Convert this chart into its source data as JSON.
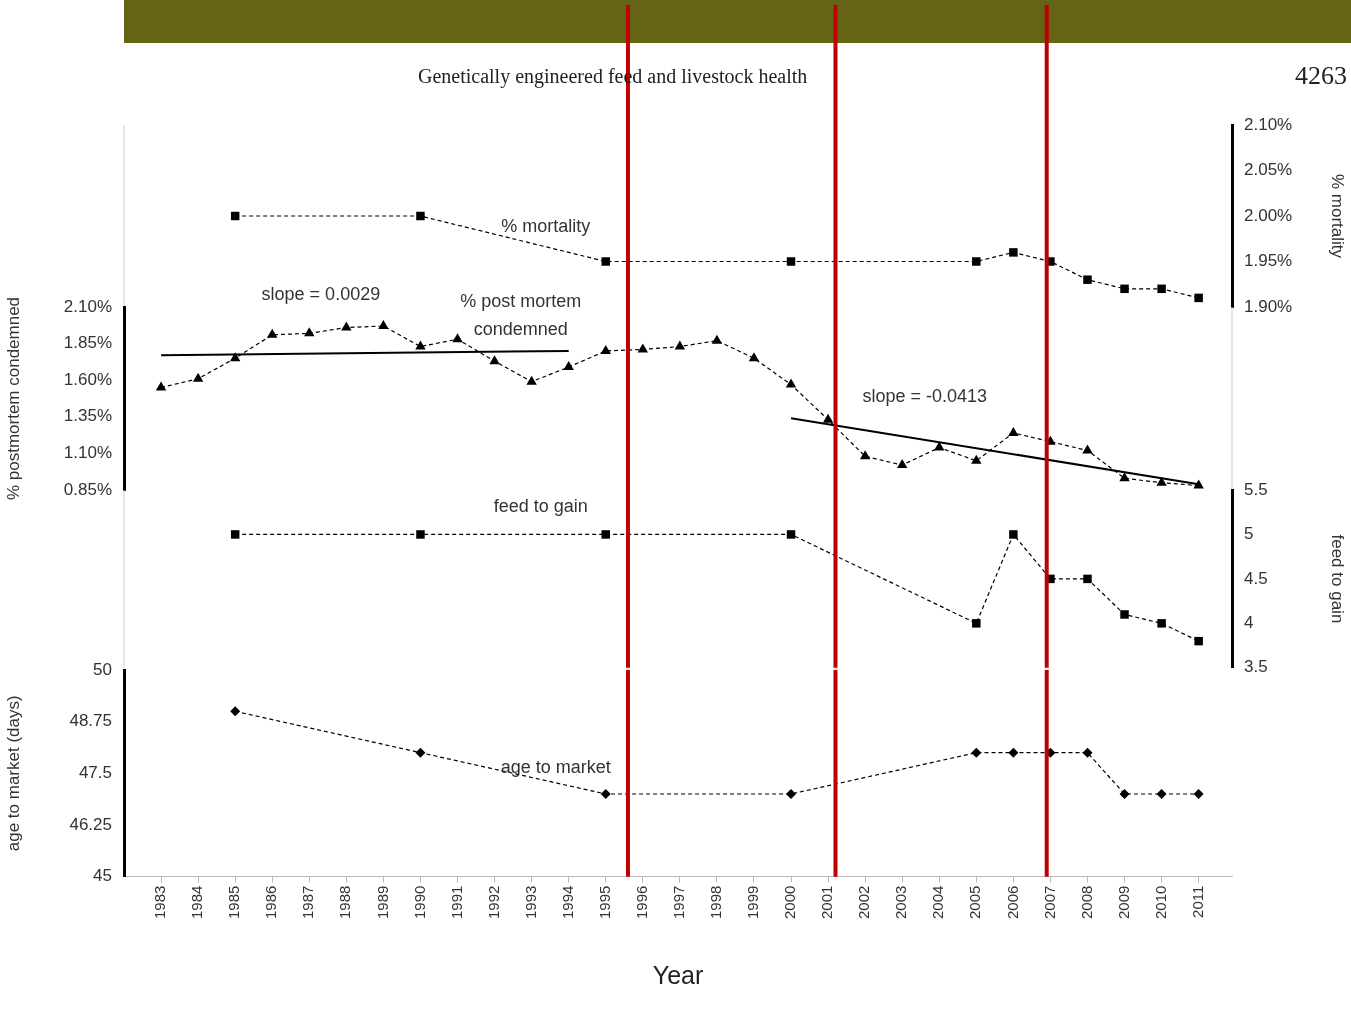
{
  "chart_data": [
    {
      "type": "line",
      "title": "Genetically engineered feed and livestock health",
      "ylabel": "% mortality",
      "annotations": [
        "4263"
      ],
      "x": [
        1985,
        1990,
        1995,
        2000,
        2005,
        2006,
        2007,
        2008,
        2009,
        2010,
        2011
      ],
      "series": [
        {
          "name": "% mortality",
          "color": "#000000",
          "marker": "square",
          "line_style": "dashed",
          "values": [
            2.0,
            2.0,
            1.95,
            1.95,
            1.95,
            1.96,
            1.95,
            1.93,
            1.92,
            1.92,
            1.91
          ]
        }
      ],
      "xlim": [
        1982.0,
        2011.9
      ],
      "tick_labels": "y",
      "ylim": [
        1.9,
        2.1
      ],
      "yticks": [
        {
          "value": 1.9,
          "label": "1.90%"
        },
        {
          "value": 1.95,
          "label": "1.95%"
        },
        {
          "value": 2.0,
          "label": "2.00%"
        },
        {
          "value": 2.05,
          "label": "2.05%"
        },
        {
          "value": 2.1,
          "label": "2.10%"
        }
      ],
      "ref_lines": [
        {
          "axis": "x",
          "value": 1995.6,
          "color": "#c00000"
        },
        {
          "axis": "x",
          "value": 2001.2,
          "color": "#c00000"
        },
        {
          "axis": "x",
          "value": 2006.9,
          "color": "#c00000"
        }
      ],
      "grid": false
    },
    {
      "type": "line",
      "ylabel": "% postmortem condemned",
      "annotations": [
        "slope = 0.0029",
        "slope = -0.0413"
      ],
      "x": [
        1983,
        1984,
        1985,
        1986,
        1987,
        1988,
        1989,
        1990,
        1991,
        1992,
        1993,
        1994,
        1995,
        1996,
        1997,
        1998,
        1999,
        2000,
        2001,
        2002,
        2003,
        2004,
        2005,
        2006,
        2007,
        2008,
        2009,
        2010,
        2011
      ],
      "series": [
        {
          "name": "% post mortem condemned",
          "color": "#000000",
          "marker": "triangle",
          "line_style": "dashed",
          "values": [
            1.55,
            1.61,
            1.75,
            1.91,
            1.92,
            1.96,
            1.97,
            1.83,
            1.88,
            1.73,
            1.59,
            1.69,
            1.8,
            1.81,
            1.83,
            1.87,
            1.75,
            1.57,
            1.33,
            1.08,
            1.02,
            1.14,
            1.05,
            1.24,
            1.18,
            1.12,
            0.93,
            0.9,
            0.88
          ]
        },
        {
          "type": "line",
          "color": "#000000",
          "line_style": "solid",
          "x": [
            1983,
            1994
          ],
          "values": [
            1.77,
            1.8
          ]
        },
        {
          "type": "line",
          "color": "#000000",
          "line_style": "solid",
          "x": [
            2000,
            2011
          ],
          "values": [
            1.34,
            0.89
          ]
        }
      ],
      "xlim": [
        1982.0,
        2011.9
      ],
      "tick_labels": "y",
      "ylim": [
        0.85,
        2.1
      ],
      "yticks": [
        {
          "value": 0.85,
          "label": "0.85%"
        },
        {
          "value": 1.1,
          "label": "1.10%"
        },
        {
          "value": 1.35,
          "label": "1.35%"
        },
        {
          "value": 1.6,
          "label": "1.60%"
        },
        {
          "value": 1.85,
          "label": "1.85%"
        },
        {
          "value": 2.1,
          "label": "2.10%"
        }
      ],
      "ref_lines": [
        {
          "axis": "x",
          "value": 1995.6,
          "color": "#c00000"
        },
        {
          "axis": "x",
          "value": 2001.2,
          "color": "#c00000"
        },
        {
          "axis": "x",
          "value": 2006.9,
          "color": "#c00000"
        }
      ],
      "grid": false
    },
    {
      "type": "line",
      "ylabel": "feed to gain",
      "x": [
        1985,
        1990,
        1995,
        2000,
        2005,
        2006,
        2007,
        2008,
        2009,
        2010,
        2011
      ],
      "series": [
        {
          "name": "feed to gain",
          "color": "#000000",
          "marker": "square",
          "line_style": "dashed",
          "values": [
            5,
            5,
            5,
            5,
            4.0,
            5,
            4.5,
            4.5,
            4.1,
            4.0,
            3.8
          ]
        }
      ],
      "xlim": [
        1982.0,
        2011.9
      ],
      "tick_labels": "y",
      "ylim": [
        3.5,
        5.5
      ],
      "yticks": [
        3.5,
        4,
        4.5,
        5,
        5.5
      ],
      "ref_lines": [
        {
          "axis": "x",
          "value": 1995.6,
          "color": "#c00000"
        },
        {
          "axis": "x",
          "value": 2001.2,
          "color": "#c00000"
        },
        {
          "axis": "x",
          "value": 2006.9,
          "color": "#c00000"
        }
      ],
      "grid": false
    },
    {
      "type": "line",
      "xlabel": "Year",
      "ylabel": "age to market (days)",
      "x": [
        1985,
        1990,
        1995,
        2000,
        2005,
        2006,
        2007,
        2008,
        2009,
        2010,
        2011
      ],
      "series": [
        {
          "name": "age to market",
          "color": "#000000",
          "marker": "diamond",
          "line_style": "dashed",
          "values": [
            49.0,
            48.0,
            47.0,
            47.0,
            48.0,
            48.0,
            48.0,
            48.0,
            47.0,
            47.0,
            47.0
          ]
        }
      ],
      "xlim": [
        1982.0,
        2011.9
      ],
      "xticks": [
        1983,
        1984,
        1985,
        1986,
        1987,
        1988,
        1989,
        1990,
        1991,
        1992,
        1993,
        1994,
        1995,
        1996,
        1997,
        1998,
        1999,
        2000,
        2001,
        2002,
        2003,
        2004,
        2005,
        2006,
        2007,
        2008,
        2009,
        2010,
        2011
      ],
      "ylim": [
        45,
        50
      ],
      "yticks": [
        45,
        46.25,
        47.5,
        48.75,
        50
      ],
      "ref_lines": [
        {
          "axis": "x",
          "value": 1995.6,
          "color": "#c00000"
        },
        {
          "axis": "x",
          "value": 2001.2,
          "color": "#c00000"
        },
        {
          "axis": "x",
          "value": 2006.9,
          "color": "#c00000"
        }
      ],
      "grid": false
    }
  ]
}
